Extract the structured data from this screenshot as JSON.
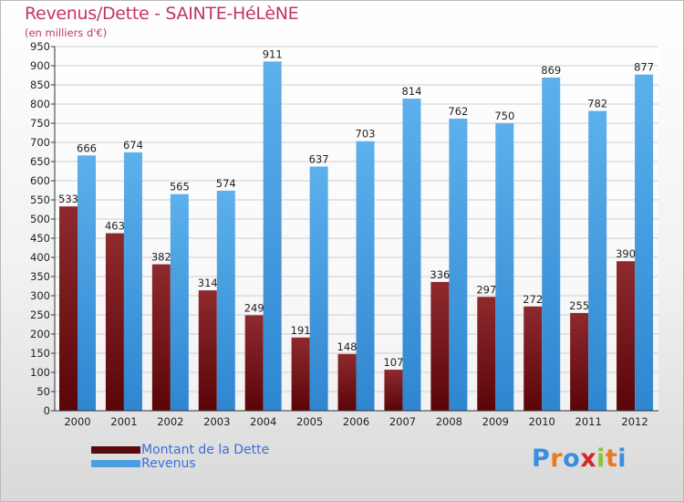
{
  "header": {
    "title": "Revenus/Dette - SAINTE-HéLèNE",
    "subtitle": "(en milliers d'€)"
  },
  "chart_data": {
    "type": "bar",
    "title": "Revenus/Dette - SAINTE-HéLèNE",
    "ylabel": "(en milliers d'€)",
    "xlabel": "",
    "categories": [
      "2000",
      "2001",
      "2002",
      "2003",
      "2004",
      "2005",
      "2006",
      "2007",
      "2008",
      "2009",
      "2010",
      "2011",
      "2012"
    ],
    "series": [
      {
        "name": "Montant de la Dette",
        "color": "#7a1418",
        "values": [
          533,
          463,
          382,
          314,
          249,
          191,
          148,
          107,
          336,
          297,
          272,
          255,
          390
        ]
      },
      {
        "name": "Revenus",
        "color": "#4a9fe0",
        "values": [
          666,
          674,
          565,
          574,
          911,
          637,
          703,
          814,
          762,
          750,
          869,
          782,
          877
        ]
      }
    ],
    "ylim": [
      0,
      950
    ],
    "ytick_step": 50,
    "yticks": [
      "0",
      "50",
      "100",
      "150",
      "200",
      "250",
      "300",
      "350",
      "400",
      "450",
      "500",
      "550",
      "600",
      "650",
      "700",
      "750",
      "800",
      "850",
      "900",
      "950"
    ],
    "grid": true,
    "legend_position": "bottom-left"
  },
  "legend": {
    "items": [
      {
        "label": "Montant de la Dette",
        "color": "#5a0a0c"
      },
      {
        "label": "Revenus",
        "color": "#4a9fe0"
      }
    ]
  },
  "logo": {
    "letters": [
      "P",
      "r",
      "o",
      "x",
      "i",
      "t",
      "i"
    ],
    "colors": [
      "#3a8ee0",
      "#e87a20",
      "#3a8ee0",
      "#d02828",
      "#8ac43a",
      "#e87a20",
      "#3a8ee0"
    ]
  }
}
